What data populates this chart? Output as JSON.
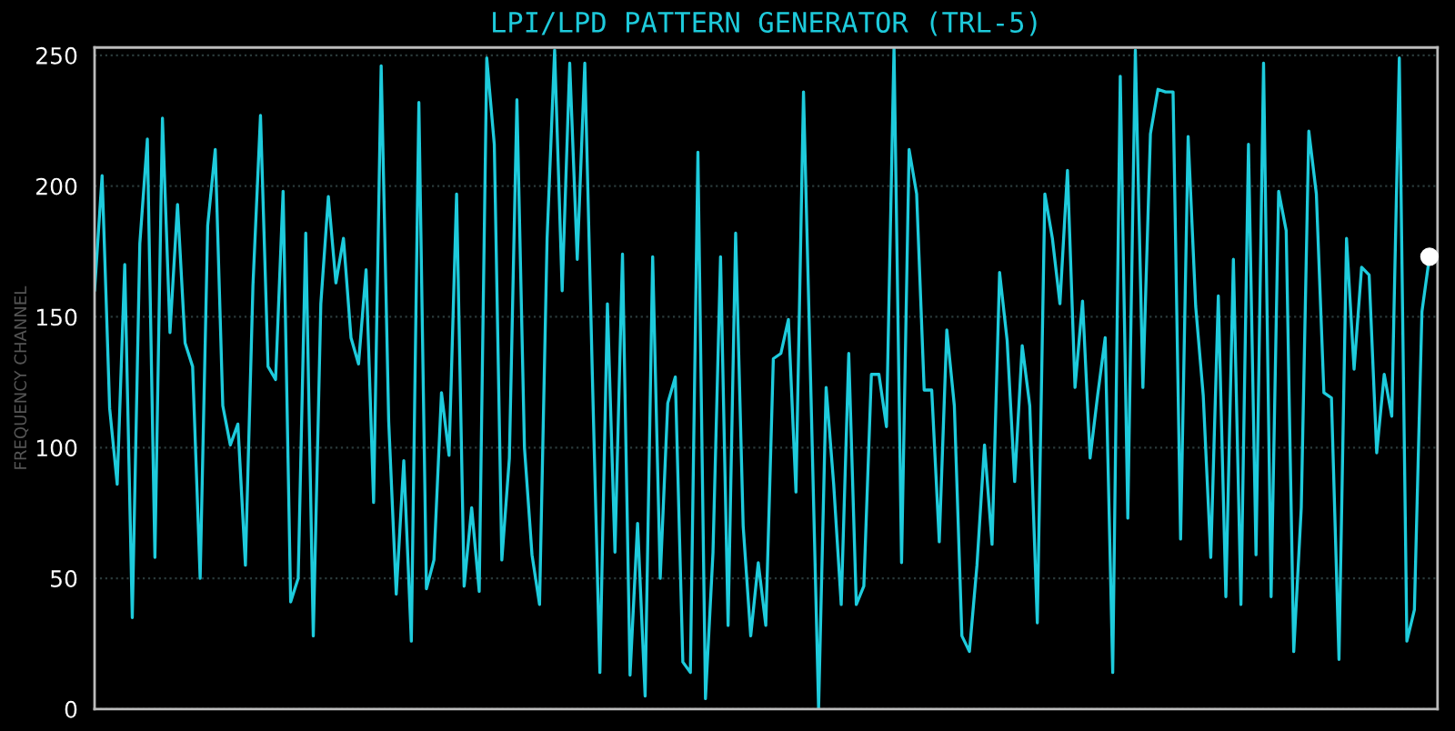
{
  "chart_data": {
    "type": "line",
    "title": "LPI/LPD PATTERN GENERATOR (TRL-5)",
    "ylabel": "FREQUENCY CHANNEL",
    "categories": [
      null,
      null,
      null,
      null,
      null,
      null,
      null,
      null,
      null,
      null,
      null,
      null,
      null,
      null,
      null,
      null,
      null,
      null,
      null,
      null,
      null,
      null,
      null,
      null,
      null,
      null,
      null,
      null,
      null,
      null,
      null,
      null,
      null,
      null,
      null,
      null,
      null,
      null,
      null,
      null,
      null,
      null,
      null,
      null,
      null,
      null,
      null,
      null,
      null,
      null,
      null,
      null,
      null,
      null,
      null,
      null,
      null,
      null,
      null,
      null,
      null,
      null,
      null,
      null,
      null,
      null,
      null,
      null,
      null,
      null,
      null,
      null,
      null,
      null,
      null,
      null,
      null,
      null,
      null,
      null,
      null,
      null,
      null,
      null,
      null,
      null,
      null,
      null,
      null,
      null,
      null,
      null,
      null,
      null,
      null,
      null,
      null,
      null,
      null,
      null,
      null,
      null,
      null,
      null,
      null,
      null,
      null,
      null,
      null,
      null,
      null,
      null,
      null,
      null,
      null,
      null,
      null,
      null,
      null,
      null,
      null,
      null,
      null,
      null,
      null,
      null,
      null,
      null,
      null,
      null,
      null,
      null,
      null,
      null,
      null,
      null,
      null,
      null,
      null,
      null,
      null,
      null,
      null,
      null,
      null,
      null,
      null,
      null,
      null,
      null,
      null,
      null,
      null,
      null,
      null,
      null,
      null,
      null,
      null,
      null,
      null,
      null,
      null,
      null,
      null,
      null,
      null,
      null,
      null,
      null,
      null,
      null,
      null,
      null,
      null,
      null,
      null,
      null
    ],
    "series": [
      {
        "color": "#1ecbdc",
        "values": [
          160,
          204,
          115,
          86,
          170,
          35,
          178,
          218,
          58,
          226,
          144,
          193,
          140,
          131,
          50,
          185,
          214,
          116,
          101,
          109,
          55,
          162,
          227,
          131,
          126,
          198,
          41,
          50,
          182,
          28,
          155,
          196,
          163,
          180,
          142,
          132,
          168,
          79,
          246,
          110,
          44,
          95,
          26,
          232,
          46,
          57,
          121,
          97,
          197,
          47,
          77,
          45,
          249,
          216,
          57,
          96,
          233,
          100,
          59,
          40,
          180,
          252,
          160,
          247,
          172,
          247,
          128,
          14,
          155,
          60,
          174,
          13,
          71,
          5,
          173,
          50,
          117,
          127,
          18,
          14,
          213,
          4,
          60,
          173,
          32,
          182,
          70,
          28,
          56,
          32,
          134,
          136,
          149,
          83,
          236,
          119,
          0,
          123,
          86,
          40,
          136,
          40,
          47,
          128,
          128,
          108,
          253,
          56,
          214,
          197,
          122,
          122,
          64,
          145,
          116,
          28,
          22,
          55,
          101,
          63,
          167,
          141,
          87,
          139,
          116,
          33,
          197,
          180,
          155,
          206,
          123,
          156,
          96,
          120,
          142,
          14,
          242,
          73,
          252,
          123,
          220,
          237,
          236,
          236,
          65,
          219,
          154,
          120,
          58,
          158,
          43,
          172,
          40,
          216,
          59,
          247,
          43,
          198,
          183,
          22,
          77,
          221,
          197,
          121,
          119,
          19,
          180,
          130,
          169,
          166,
          98,
          128,
          112,
          249,
          26,
          38,
          152,
          173
        ]
      },
      {
        "type": "scatter",
        "color": "#ffffff",
        "marker": "circle",
        "values": [
          null,
          null,
          null,
          null,
          null,
          null,
          null,
          null,
          null,
          null,
          null,
          null,
          null,
          null,
          null,
          null,
          null,
          null,
          null,
          null,
          null,
          null,
          null,
          null,
          null,
          null,
          null,
          null,
          null,
          null,
          null,
          null,
          null,
          null,
          null,
          null,
          null,
          null,
          null,
          null,
          null,
          null,
          null,
          null,
          null,
          null,
          null,
          null,
          null,
          null,
          null,
          null,
          null,
          null,
          null,
          null,
          null,
          null,
          null,
          null,
          null,
          null,
          null,
          null,
          null,
          null,
          null,
          null,
          null,
          null,
          null,
          null,
          null,
          null,
          null,
          null,
          null,
          null,
          null,
          null,
          null,
          null,
          null,
          null,
          null,
          null,
          null,
          null,
          null,
          null,
          null,
          null,
          null,
          null,
          null,
          null,
          null,
          null,
          null,
          null,
          null,
          null,
          null,
          null,
          null,
          null,
          null,
          null,
          null,
          null,
          null,
          null,
          null,
          null,
          null,
          null,
          null,
          null,
          null,
          null,
          null,
          null,
          null,
          null,
          null,
          null,
          null,
          null,
          null,
          null,
          null,
          null,
          null,
          null,
          null,
          null,
          null,
          null,
          null,
          null,
          null,
          null,
          null,
          null,
          null,
          null,
          null,
          null,
          null,
          null,
          null,
          null,
          null,
          null,
          null,
          null,
          null,
          null,
          null,
          null,
          null,
          null,
          null,
          null,
          null,
          null,
          null,
          null,
          null,
          null,
          null,
          null,
          null,
          null,
          null,
          null,
          null,
          173
        ]
      }
    ],
    "ylim": [
      0,
      253
    ],
    "yticks": [
      0,
      50,
      100,
      150,
      200,
      250
    ],
    "grid": "y",
    "tick_labels": "y"
  }
}
